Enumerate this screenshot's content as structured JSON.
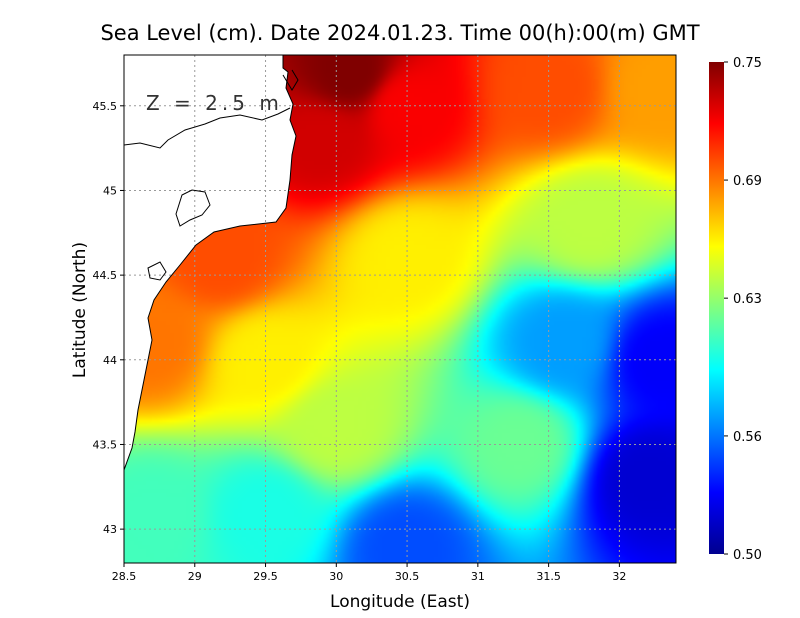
{
  "chart_data": {
    "type": "heatmap",
    "title": "Sea Level (cm). Date 2024.01.23. Time 00(h):00(m) GMT",
    "xlabel": "Longitude (East)",
    "ylabel": "Latitude (North)",
    "annotation": "Z = 2.5 m",
    "xlim": [
      28.5,
      32.4
    ],
    "ylim": [
      42.8,
      45.8
    ],
    "xticks": [
      28.5,
      29,
      29.5,
      30,
      30.5,
      31,
      31.5,
      32
    ],
    "xtick_labels": [
      "28.5",
      "29",
      "29.5",
      "30",
      "30.5",
      "31",
      "31.5",
      "32"
    ],
    "yticks": [
      43,
      43.5,
      44,
      44.5,
      45,
      45.5
    ],
    "ytick_labels": [
      "43",
      "43.5",
      "44",
      "44.5",
      "45",
      "45.5"
    ],
    "grid": true,
    "colorbar": {
      "min": 0.5,
      "max": 0.75,
      "ticks": [
        0.5,
        0.56,
        0.63,
        0.69,
        0.75
      ],
      "tick_labels": [
        "0.50",
        "0.56",
        "0.63",
        "0.69",
        "0.75"
      ],
      "colormap": "jet"
    },
    "field_samples": [
      {
        "lon": 30.1,
        "lat": 45.7,
        "value": 0.75
      },
      {
        "lon": 29.9,
        "lat": 45.3,
        "value": 0.73
      },
      {
        "lon": 30.5,
        "lat": 45.5,
        "value": 0.72
      },
      {
        "lon": 31.5,
        "lat": 45.6,
        "value": 0.7
      },
      {
        "lon": 32.3,
        "lat": 45.6,
        "value": 0.68
      },
      {
        "lon": 29.2,
        "lat": 44.6,
        "value": 0.7
      },
      {
        "lon": 28.7,
        "lat": 44.1,
        "value": 0.69
      },
      {
        "lon": 29.5,
        "lat": 44.0,
        "value": 0.66
      },
      {
        "lon": 30.5,
        "lat": 44.6,
        "value": 0.66
      },
      {
        "lon": 31.8,
        "lat": 44.8,
        "value": 0.64
      },
      {
        "lon": 30.0,
        "lat": 43.6,
        "value": 0.64
      },
      {
        "lon": 31.6,
        "lat": 44.1,
        "value": 0.57
      },
      {
        "lon": 32.3,
        "lat": 44.0,
        "value": 0.53
      },
      {
        "lon": 32.2,
        "lat": 43.3,
        "value": 0.52
      },
      {
        "lon": 31.3,
        "lat": 43.5,
        "value": 0.62
      },
      {
        "lon": 29.5,
        "lat": 43.1,
        "value": 0.6
      },
      {
        "lon": 30.5,
        "lat": 42.9,
        "value": 0.55
      },
      {
        "lon": 28.7,
        "lat": 43.1,
        "value": 0.61
      }
    ]
  },
  "colors": {
    "coast_line": "#000000",
    "grid_line": "#9a9a9a",
    "land": "#ffffff"
  }
}
